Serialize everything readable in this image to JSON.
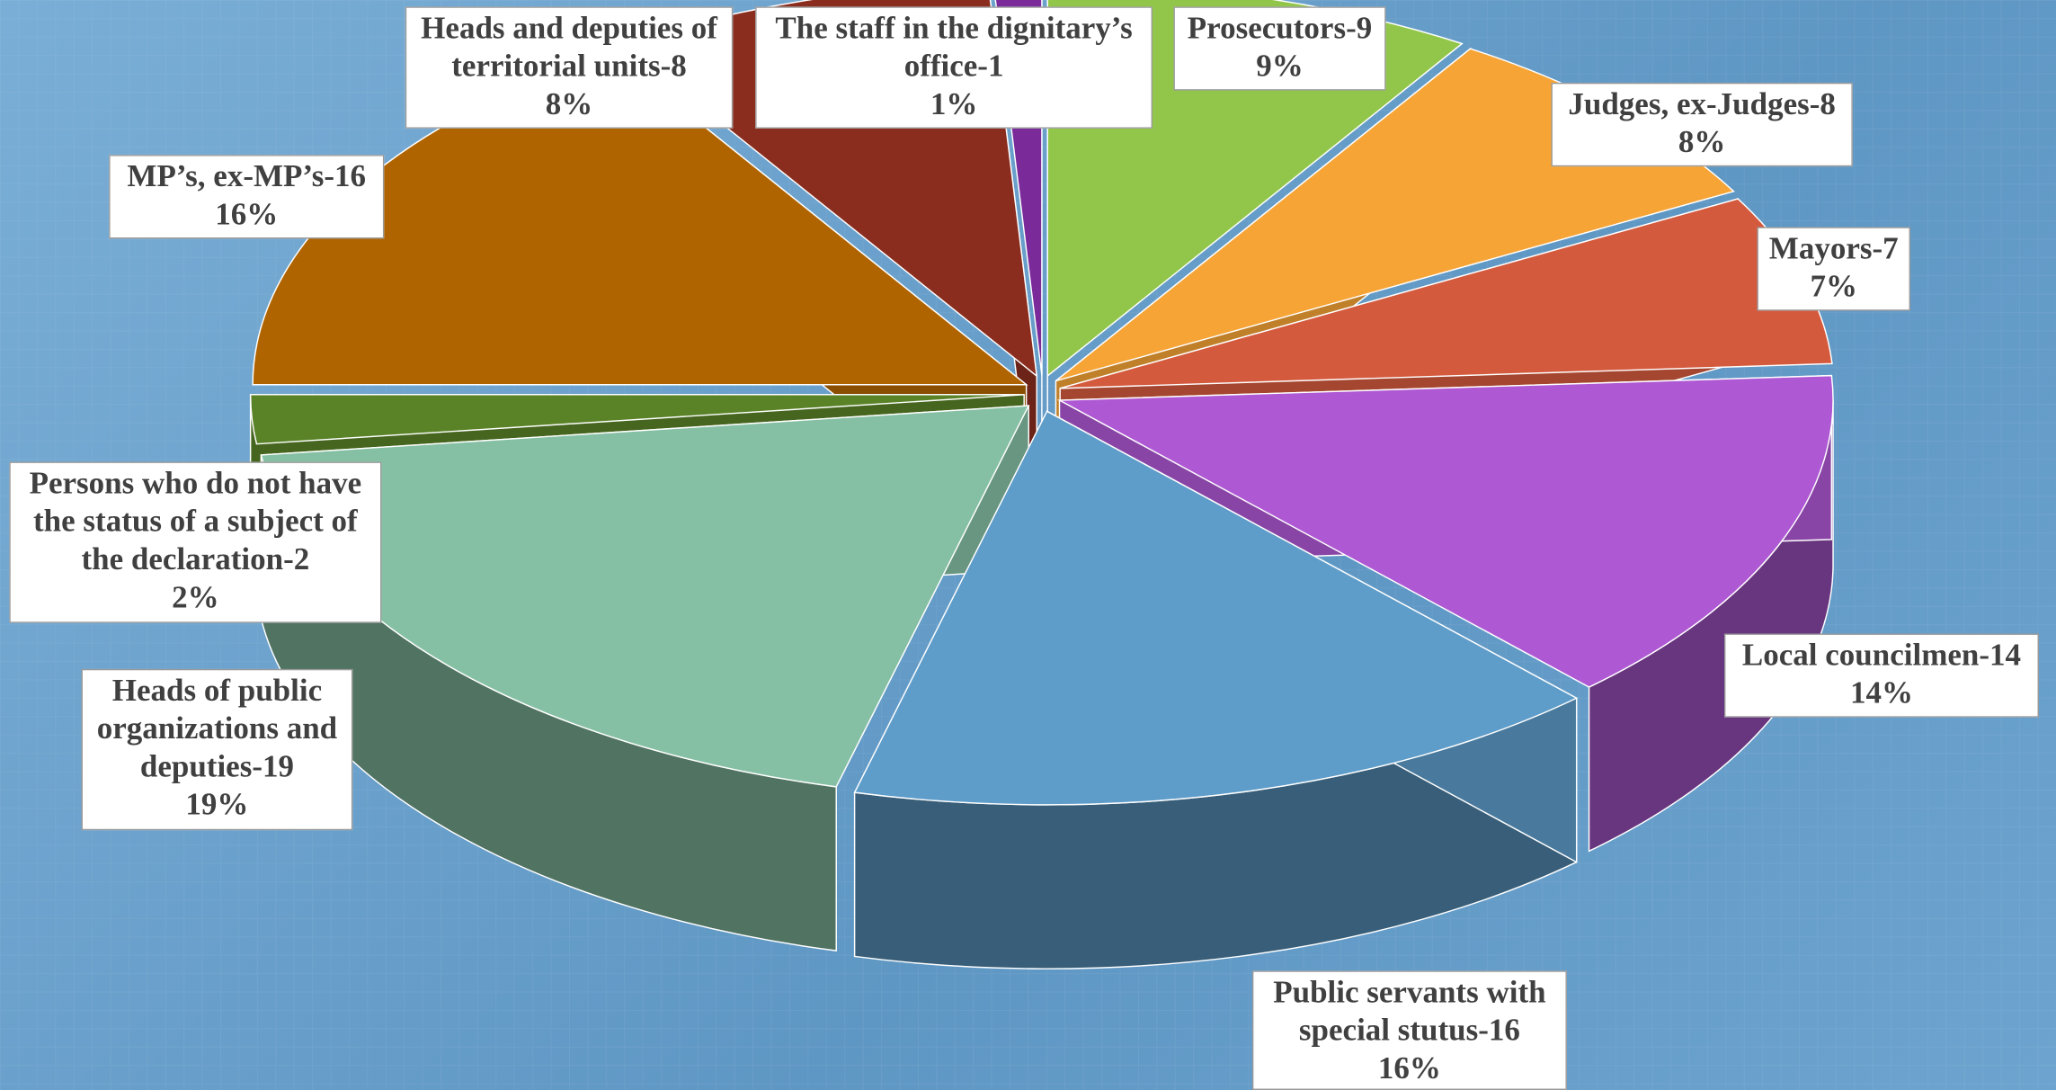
{
  "chart_data": {
    "type": "pie3d",
    "categories": [
      "Prosecutors-9",
      "Judges, ex-Judges-8",
      "Mayors-7",
      "Local councilmen-14",
      "Public servants with special stutus-16",
      "Heads of public organizations and deputies-19",
      "Persons who do not have the status of a subject of the declaration-2",
      "MP’s, ex-MP’s-16",
      "Heads and deputies of territorial units-8",
      "The staff in the dignitary’s office-1"
    ],
    "values": [
      9,
      8,
      7,
      14,
      16,
      19,
      2,
      16,
      8,
      1
    ],
    "value_labels": [
      "9%",
      "8%",
      "7%",
      "14%",
      "16%",
      "19%",
      "2%",
      "16%",
      "8%",
      "1%"
    ],
    "colors": [
      "#92c64a",
      "#f6a436",
      "#d45a3e",
      "#ae58d3",
      "#5e9cc9",
      "#86c0a4",
      "#5a8328",
      "#b06400",
      "#8a2d1f",
      "#7b2a9a"
    ]
  }
}
